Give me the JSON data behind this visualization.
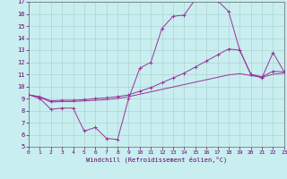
{
  "xlabel": "Windchill (Refroidissement éolien,°C)",
  "background_color": "#c8eef0",
  "line_color": "#993399",
  "x_range": [
    0,
    23
  ],
  "y_range": [
    5,
    17
  ],
  "yticks": [
    5,
    6,
    7,
    8,
    9,
    10,
    11,
    12,
    13,
    14,
    15,
    16,
    17
  ],
  "xticks": [
    0,
    1,
    2,
    3,
    4,
    5,
    6,
    7,
    8,
    9,
    10,
    11,
    12,
    13,
    14,
    15,
    16,
    17,
    18,
    19,
    20,
    21,
    22,
    23
  ],
  "curve1_x": [
    0,
    1,
    2,
    3,
    4,
    5,
    6,
    7,
    8,
    9,
    10,
    11,
    12,
    13,
    14,
    15,
    16,
    17,
    18,
    19,
    20,
    21,
    22,
    23
  ],
  "curve1_y": [
    9.3,
    9.0,
    8.1,
    8.2,
    8.2,
    6.3,
    6.6,
    5.7,
    5.6,
    9.0,
    11.5,
    12.0,
    14.8,
    15.8,
    15.9,
    17.2,
    17.4,
    17.1,
    16.2,
    13.0,
    11.0,
    10.7,
    12.8,
    11.2
  ],
  "curve2_x": [
    0,
    1,
    2,
    3,
    4,
    5,
    6,
    7,
    8,
    9,
    10,
    11,
    12,
    13,
    14,
    15,
    16,
    17,
    18,
    19,
    20,
    21,
    22,
    23
  ],
  "curve2_y": [
    9.3,
    9.1,
    8.7,
    8.75,
    8.75,
    8.8,
    8.85,
    8.9,
    9.0,
    9.15,
    9.35,
    9.55,
    9.75,
    9.95,
    10.15,
    10.35,
    10.55,
    10.75,
    10.95,
    11.05,
    10.9,
    10.75,
    11.0,
    11.1
  ],
  "curve3_x": [
    0,
    1,
    2,
    3,
    4,
    5,
    6,
    7,
    8,
    9,
    10,
    11,
    12,
    13,
    14,
    15,
    16,
    17,
    18,
    19,
    20,
    21,
    22,
    23
  ],
  "curve3_y": [
    9.3,
    9.15,
    8.8,
    8.85,
    8.85,
    8.9,
    9.0,
    9.05,
    9.15,
    9.3,
    9.6,
    9.9,
    10.3,
    10.7,
    11.1,
    11.6,
    12.1,
    12.6,
    13.1,
    13.0,
    11.0,
    10.8,
    11.25,
    11.2
  ]
}
